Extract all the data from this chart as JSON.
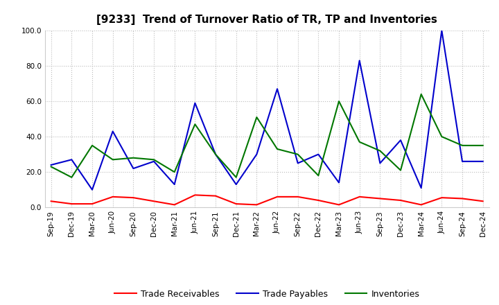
{
  "title": "[9233]  Trend of Turnover Ratio of TR, TP and Inventories",
  "x_labels": [
    "Sep-19",
    "Dec-19",
    "Mar-20",
    "Jun-20",
    "Sep-20",
    "Dec-20",
    "Mar-21",
    "Jun-21",
    "Sep-21",
    "Dec-21",
    "Mar-22",
    "Jun-22",
    "Sep-22",
    "Dec-22",
    "Mar-23",
    "Jun-23",
    "Sep-23",
    "Dec-23",
    "Mar-24",
    "Jun-24",
    "Sep-24",
    "Dec-24"
  ],
  "ylim": [
    0.0,
    100.0
  ],
  "yticks": [
    0.0,
    20.0,
    40.0,
    60.0,
    80.0,
    100.0
  ],
  "trade_receivables": [
    3.5,
    2.0,
    2.0,
    6.0,
    5.5,
    3.5,
    1.5,
    7.0,
    6.5,
    2.0,
    1.5,
    6.0,
    6.0,
    4.0,
    1.5,
    6.0,
    5.0,
    4.0,
    1.5,
    5.5,
    5.0,
    3.5
  ],
  "trade_payables": [
    24.0,
    27.0,
    10.0,
    43.0,
    22.0,
    26.0,
    13.0,
    59.0,
    30.0,
    13.0,
    30.0,
    67.0,
    25.0,
    30.0,
    14.0,
    83.0,
    25.0,
    38.0,
    11.0,
    100.0,
    26.0,
    26.0
  ],
  "inventories": [
    23.0,
    17.0,
    35.0,
    27.0,
    28.0,
    27.0,
    20.0,
    47.0,
    30.0,
    17.0,
    51.0,
    33.0,
    30.0,
    18.0,
    60.0,
    37.0,
    32.0,
    21.0,
    64.0,
    40.0,
    35.0,
    35.0
  ],
  "tr_color": "#ff0000",
  "tp_color": "#0000cc",
  "inv_color": "#007700",
  "tr_label": "Trade Receivables",
  "tp_label": "Trade Payables",
  "inv_label": "Inventories",
  "bg_color": "#ffffff",
  "plot_bg_color": "#ffffff",
  "grid_color": "#bbbbbb",
  "title_fontsize": 11,
  "legend_fontsize": 9,
  "tick_fontsize": 7.5
}
